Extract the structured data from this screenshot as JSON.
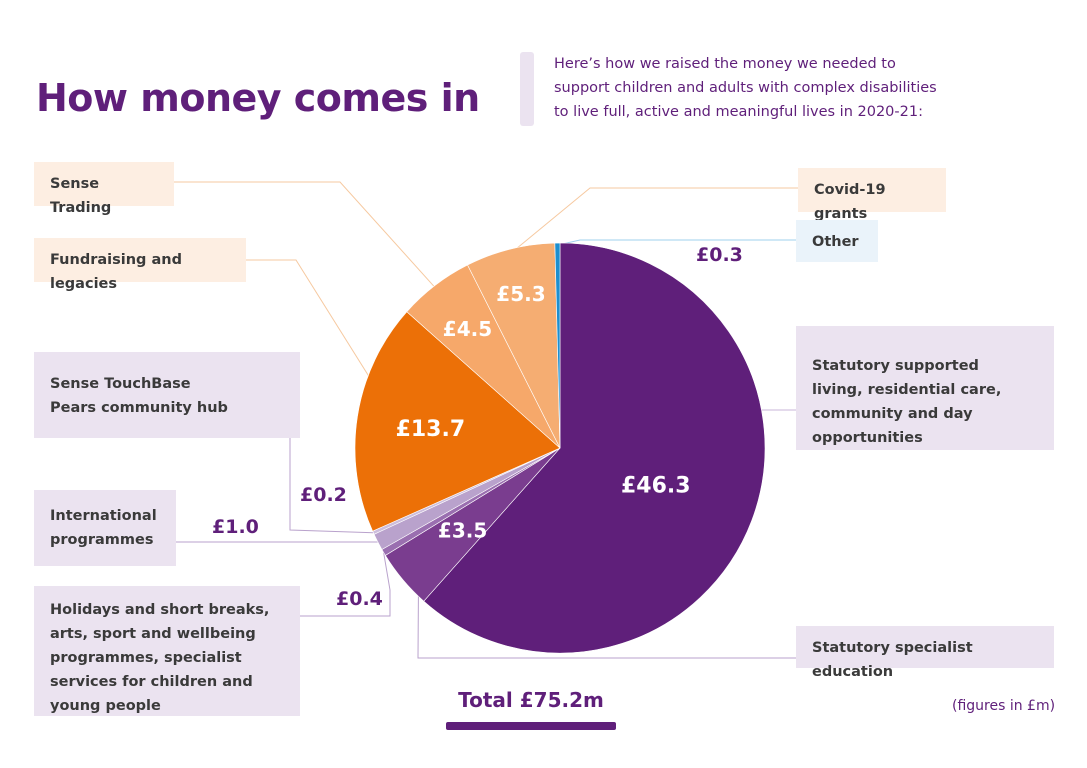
{
  "title": "How money comes in",
  "intro": "Here’s how we raised the money we needed to support children and adults with complex disabilities to live full, active and meaningful lives in 2020-21:",
  "total": "Total £75.2m",
  "note": "(figures in £m)",
  "colors": {
    "purple_dark": "#5f1f7a",
    "purple_mid": "#7a3d8f",
    "purple_light": "#9a6fb0",
    "lavender": "#b9a2cc",
    "orange": "#ec7007",
    "peach": "#f6a86a",
    "peach_light": "#f5ad72",
    "blue": "#1d8fcf"
  },
  "chart_data": {
    "type": "pie",
    "categories": [
      "Statutory supported living, residential care, community and day opportunities",
      "Statutory specialist education",
      "Holidays and short breaks, arts, sport and wellbeing programmes, specialist services for children and young people",
      "International programmes",
      "Sense TouchBase Pears community hub",
      "Fundraising and legacies",
      "Sense Trading",
      "Covid-19 grants",
      "Other"
    ],
    "values": [
      46.3,
      3.5,
      0.4,
      1.0,
      0.2,
      13.7,
      4.5,
      5.3,
      0.3
    ],
    "labels": [
      "£46.3",
      "£3.5",
      "£0.4",
      "£1.0",
      "£0.2",
      "£13.7",
      "£4.5",
      "£5.3",
      "£0.3"
    ],
    "total": 75.2,
    "unit": "£m"
  }
}
